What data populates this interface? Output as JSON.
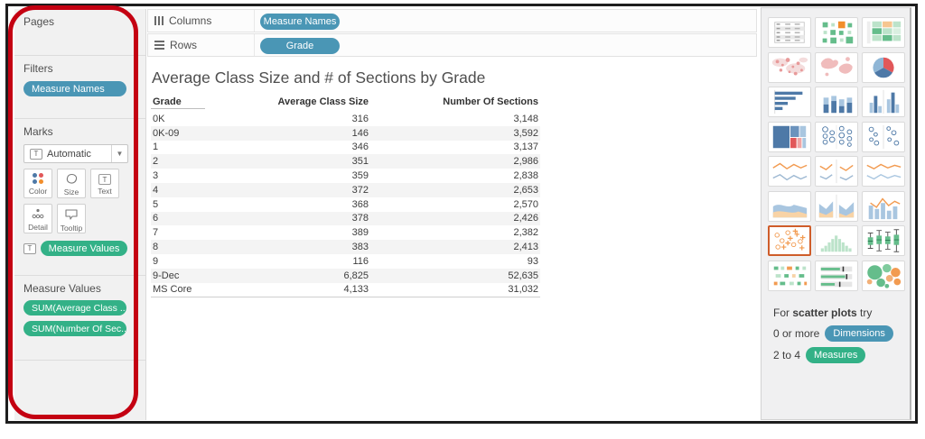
{
  "colors": {
    "dimension_blue": "#4a96b5",
    "measure_green": "#33b187",
    "selection_orange": "#cf5d2a",
    "annotation_red": "#c40112"
  },
  "sidebar": {
    "pages": {
      "label": "Pages"
    },
    "filters": {
      "label": "Filters",
      "pills": [
        {
          "label": "Measure Names"
        }
      ]
    },
    "marks": {
      "label": "Marks",
      "mark_type": "Automatic",
      "buttons": [
        {
          "label": "Color"
        },
        {
          "label": "Size"
        },
        {
          "label": "Text"
        },
        {
          "label": "Detail"
        },
        {
          "label": "Tooltip"
        }
      ],
      "target_pill": "Measure Values"
    },
    "measure_values": {
      "label": "Measure Values",
      "pills": [
        "SUM(Average Class ..",
        "SUM(Number Of Sec.."
      ]
    }
  },
  "shelves": {
    "columns": {
      "label": "Columns",
      "pills": [
        "Measure Names"
      ]
    },
    "rows": {
      "label": "Rows",
      "pills": [
        "Grade"
      ]
    }
  },
  "sheet": {
    "title": "Average Class Size and # of Sections by Grade"
  },
  "chart_data": {
    "type": "table",
    "title": "Average Class Size and # of Sections by Grade",
    "headers": [
      "Grade",
      "Average Class Size",
      "Number Of Sections"
    ],
    "rows": [
      [
        "0K",
        "316",
        "3,148"
      ],
      [
        "0K-09",
        "146",
        "3,592"
      ],
      [
        "1",
        "346",
        "3,137"
      ],
      [
        "2",
        "351",
        "2,986"
      ],
      [
        "3",
        "359",
        "2,838"
      ],
      [
        "4",
        "372",
        "2,653"
      ],
      [
        "5",
        "368",
        "2,570"
      ],
      [
        "6",
        "378",
        "2,426"
      ],
      [
        "7",
        "389",
        "2,382"
      ],
      [
        "8",
        "383",
        "2,413"
      ],
      [
        "9",
        "116",
        "93"
      ],
      [
        "9-Dec",
        "6,825",
        "52,635"
      ],
      [
        "MS Core",
        "4,133",
        "31,032"
      ]
    ]
  },
  "show_me": {
    "items": [
      {
        "name": "text-table",
        "label": "text tables",
        "selected": false
      },
      {
        "name": "heat-map",
        "label": "heat maps",
        "selected": false
      },
      {
        "name": "highlight-table",
        "label": "highlight tables",
        "selected": false
      },
      {
        "name": "symbol-map",
        "label": "symbol maps",
        "selected": false
      },
      {
        "name": "filled-map",
        "label": "filled maps",
        "selected": false
      },
      {
        "name": "pie-chart",
        "label": "pie charts",
        "selected": false
      },
      {
        "name": "horizontal-bars",
        "label": "horizontal bars",
        "selected": false
      },
      {
        "name": "stacked-bars",
        "label": "stacked bars",
        "selected": false
      },
      {
        "name": "side-by-side-bars",
        "label": "side-by-side bars",
        "selected": false
      },
      {
        "name": "treemap",
        "label": "treemaps",
        "selected": false
      },
      {
        "name": "circle-views",
        "label": "circle views",
        "selected": false
      },
      {
        "name": "side-by-side-circles",
        "label": "side-by-side circles",
        "selected": false
      },
      {
        "name": "continuous-lines",
        "label": "lines (continuous)",
        "selected": false
      },
      {
        "name": "discrete-lines",
        "label": "lines (discrete)",
        "selected": false
      },
      {
        "name": "dual-lines",
        "label": "dual lines",
        "selected": false
      },
      {
        "name": "continuous-area",
        "label": "area charts (continuous)",
        "selected": false
      },
      {
        "name": "discrete-area",
        "label": "area charts (discrete)",
        "selected": false
      },
      {
        "name": "dual-combination",
        "label": "dual combination",
        "selected": false
      },
      {
        "name": "scatter-plot",
        "label": "scatter plots",
        "selected": true
      },
      {
        "name": "histogram",
        "label": "histogram",
        "selected": false
      },
      {
        "name": "box-and-whisker",
        "label": "box-and-whisker plots",
        "selected": false
      },
      {
        "name": "gantt",
        "label": "gantt",
        "selected": false
      },
      {
        "name": "bullet-graph",
        "label": "bullet graphs",
        "selected": false
      },
      {
        "name": "packed-bubbles",
        "label": "packed bubbles",
        "selected": false
      }
    ],
    "hint_prefix": "For ",
    "hint_bold": "scatter plots",
    "hint_suffix": " try",
    "requirements": [
      {
        "text": "0 or more",
        "pill": "Dimensions",
        "kind": "blue"
      },
      {
        "text": "2 to 4",
        "pill": "Measures",
        "kind": "green"
      }
    ]
  }
}
